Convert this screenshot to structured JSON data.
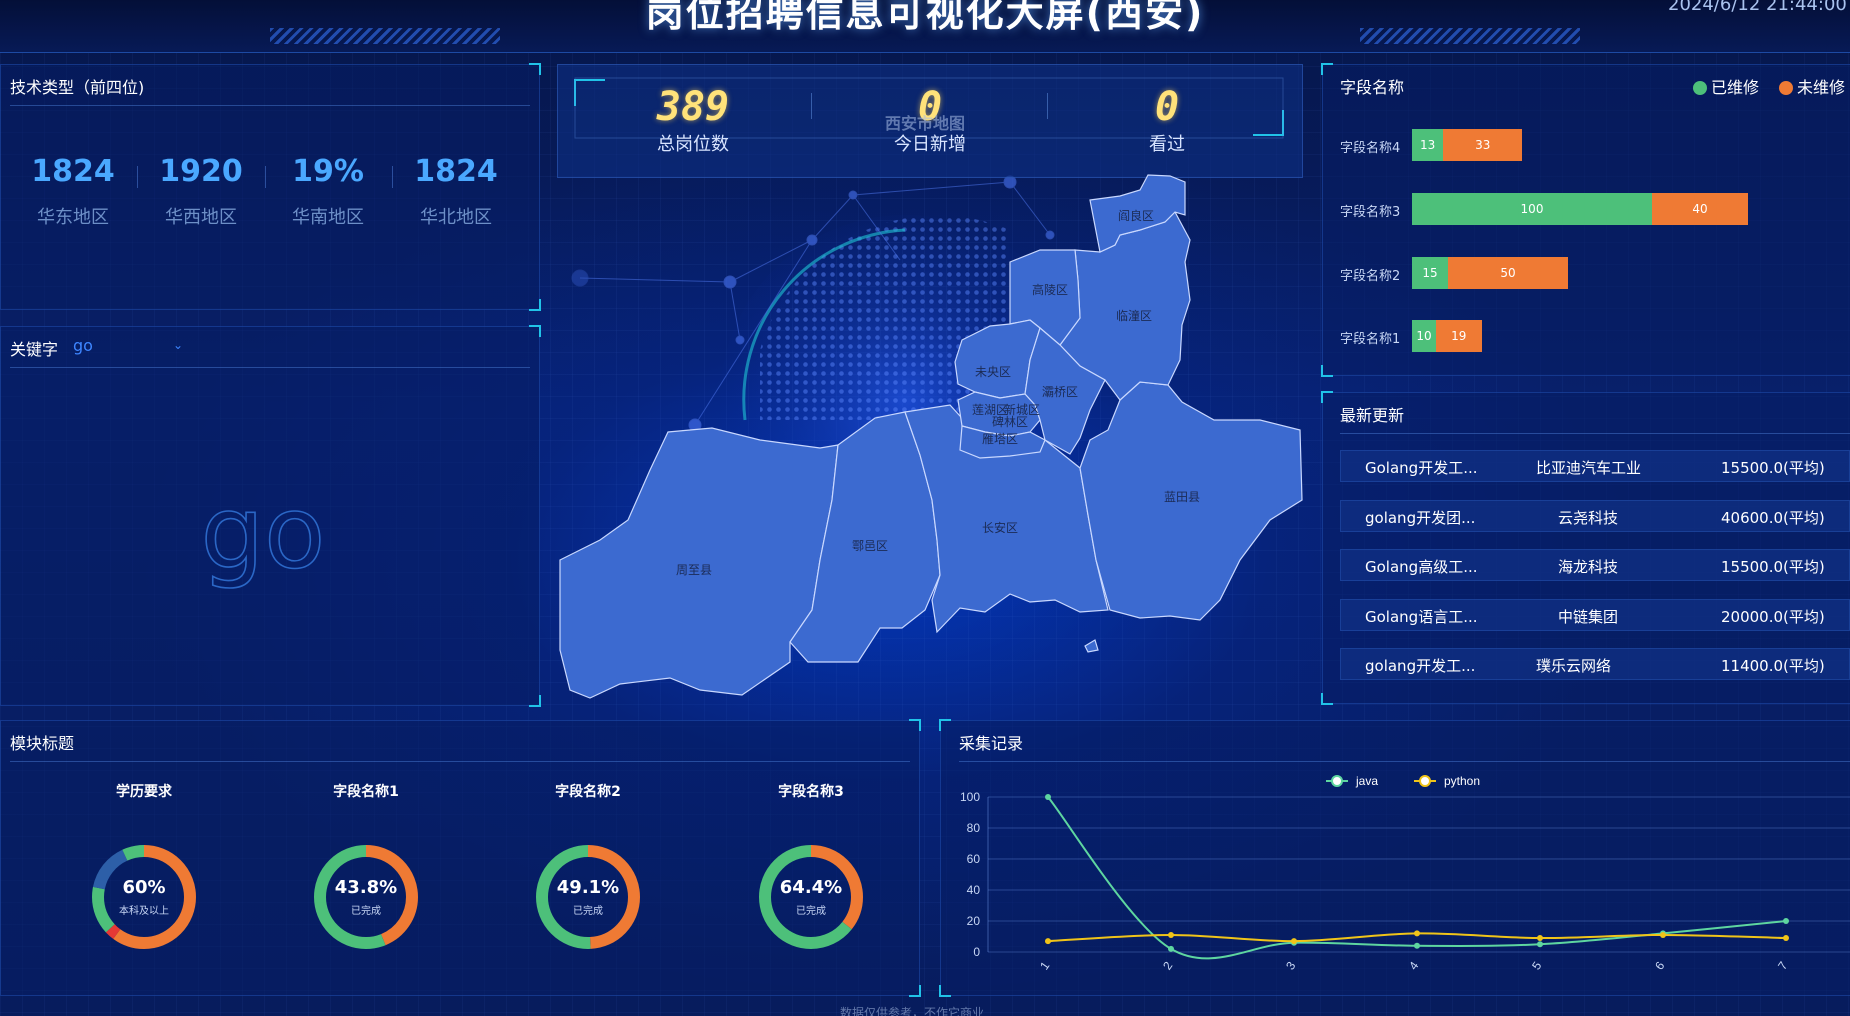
{
  "header": {
    "title": "岗位招聘信息可视化大屏(西安)",
    "datetime": "2024/6/12 21:44:00"
  },
  "tech_panel": {
    "title": "技术类型（前四位)",
    "stats": [
      {
        "value": "1824",
        "label": "华东地区"
      },
      {
        "value": "1920",
        "label": "华西地区"
      },
      {
        "value": "19%",
        "label": "华南地区"
      },
      {
        "value": "1824",
        "label": "华北地区"
      }
    ]
  },
  "keyword_panel": {
    "label": "关键字",
    "selected": "go",
    "wordcloud": [
      "go"
    ]
  },
  "counters": {
    "items": [
      {
        "value": "389",
        "label": "总岗位数"
      },
      {
        "value": "0",
        "label": "今日新增"
      },
      {
        "value": "0",
        "label": "看过"
      }
    ]
  },
  "map": {
    "title": "西安市地图",
    "districts": [
      "阎良区",
      "高陵区",
      "临潼区",
      "未央区",
      "灞桥区",
      "莲湖区",
      "新城区",
      "碑林区",
      "雁塔区",
      "长安区",
      "鄠邑区",
      "周至县",
      "蓝田县"
    ]
  },
  "field_panel": {
    "title": "字段名称",
    "legend": [
      {
        "name": "已维修",
        "color": "#4dc07a"
      },
      {
        "name": "未维修",
        "color": "#ef7a34"
      }
    ]
  },
  "stacked_bar_chart": {
    "chart_data": {
      "type": "bar",
      "stacked": true,
      "orientation": "horizontal",
      "categories": [
        "字段名称4",
        "字段名称3",
        "字段名称2",
        "字段名称1"
      ],
      "series": [
        {
          "name": "已维修",
          "values": [
            13,
            100,
            15,
            10
          ],
          "color": "#4dc07a"
        },
        {
          "name": "未维修",
          "values": [
            33,
            40,
            50,
            19
          ],
          "color": "#ef7a34"
        }
      ],
      "legend_position": "top-right"
    }
  },
  "updates_panel": {
    "title": "最新更新",
    "rows": [
      {
        "job": "Golang开发工...",
        "company": "比亚迪汽车工业",
        "salary": "15500.0(平均)"
      },
      {
        "job": "golang开发团...",
        "company": "云尧科技",
        "salary": "40600.0(平均)"
      },
      {
        "job": "Golang高级工...",
        "company": "海龙科技",
        "salary": "15500.0(平均)"
      },
      {
        "job": "Golang语言工...",
        "company": "中链集团",
        "salary": "20000.0(平均)"
      },
      {
        "job": "golang开发工...",
        "company": "璞乐云网络",
        "salary": "11400.0(平均)"
      }
    ]
  },
  "module_panel": {
    "title": "模块标题",
    "donuts": [
      {
        "title": "学历要求",
        "value": "60%",
        "sub": "本科及以上",
        "segments": [
          {
            "value": 60,
            "color": "#ef7a34"
          },
          {
            "value": 3,
            "color": "#e53935"
          },
          {
            "value": 15,
            "color": "#4dc07a"
          },
          {
            "value": 15,
            "color": "#2d5fa8"
          },
          {
            "value": 7,
            "color": "#4dc07a"
          }
        ]
      },
      {
        "title": "字段名称1",
        "value": "43.8%",
        "sub": "已完成",
        "segments": [
          {
            "value": 43.8,
            "color": "#ef7a34"
          },
          {
            "value": 56.2,
            "color": "#4dc07a"
          }
        ]
      },
      {
        "title": "字段名称2",
        "value": "49.1%",
        "sub": "已完成",
        "segments": [
          {
            "value": 49.1,
            "color": "#ef7a34"
          },
          {
            "value": 50.9,
            "color": "#4dc07a"
          }
        ]
      },
      {
        "title": "字段名称3",
        "value": "64.4%",
        "sub": "已完成",
        "segments": [
          {
            "value": 35.6,
            "color": "#ef7a34"
          },
          {
            "value": 64.4,
            "color": "#4dc07a"
          }
        ]
      }
    ]
  },
  "collect_panel": {
    "title": "采集记录"
  },
  "line_chart": {
    "chart_data": {
      "type": "line",
      "x": [
        "1",
        "2",
        "3",
        "4",
        "5",
        "6",
        "7"
      ],
      "series": [
        {
          "name": "java",
          "values": [
            100,
            2,
            6,
            4,
            5,
            12,
            20
          ],
          "color": "#5ed6a0"
        },
        {
          "name": "python",
          "values": [
            7,
            11,
            7,
            12,
            9,
            11,
            9
          ],
          "color": "#f0c419"
        }
      ],
      "ylim": [
        0,
        100
      ],
      "yticks": [
        0,
        20,
        40,
        60,
        80,
        100
      ],
      "legend_position": "top-center",
      "grid": true
    }
  },
  "footer": {
    "text": "数据仅供参考，不作它商业"
  }
}
